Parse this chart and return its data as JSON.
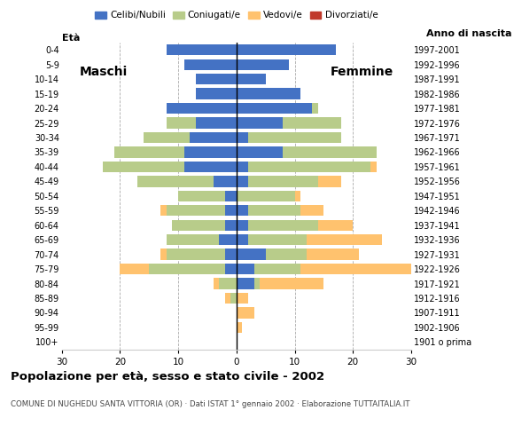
{
  "age_groups": [
    "100+",
    "95-99",
    "90-94",
    "85-89",
    "80-84",
    "75-79",
    "70-74",
    "65-69",
    "60-64",
    "55-59",
    "50-54",
    "45-49",
    "40-44",
    "35-39",
    "30-34",
    "25-29",
    "20-24",
    "15-19",
    "10-14",
    "5-9",
    "0-4"
  ],
  "birth_years": [
    "1901 o prima",
    "1902-1906",
    "1907-1911",
    "1912-1916",
    "1917-1921",
    "1922-1926",
    "1927-1931",
    "1932-1936",
    "1937-1941",
    "1942-1946",
    "1947-1951",
    "1952-1956",
    "1957-1961",
    "1962-1966",
    "1967-1971",
    "1972-1976",
    "1977-1981",
    "1982-1986",
    "1987-1991",
    "1992-1996",
    "1997-2001"
  ],
  "male": {
    "celibi": [
      0,
      0,
      0,
      0,
      0,
      2,
      2,
      3,
      2,
      2,
      2,
      4,
      9,
      9,
      8,
      7,
      12,
      7,
      7,
      9,
      12
    ],
    "coniugati": [
      0,
      0,
      0,
      1,
      3,
      13,
      10,
      9,
      9,
      10,
      8,
      13,
      14,
      12,
      8,
      5,
      0,
      0,
      0,
      0,
      0
    ],
    "vedovi": [
      0,
      0,
      0,
      1,
      1,
      5,
      1,
      0,
      0,
      1,
      0,
      0,
      0,
      0,
      0,
      0,
      0,
      0,
      0,
      0,
      0
    ],
    "divorziati": [
      0,
      0,
      0,
      0,
      0,
      0,
      0,
      0,
      0,
      0,
      0,
      0,
      0,
      0,
      0,
      0,
      0,
      0,
      0,
      0,
      0
    ]
  },
  "female": {
    "celibi": [
      0,
      0,
      0,
      0,
      3,
      3,
      5,
      2,
      2,
      2,
      0,
      2,
      2,
      8,
      2,
      8,
      13,
      11,
      5,
      9,
      17
    ],
    "coniugati": [
      0,
      0,
      0,
      0,
      1,
      8,
      7,
      10,
      12,
      9,
      10,
      12,
      21,
      16,
      16,
      10,
      1,
      0,
      0,
      0,
      0
    ],
    "vedovi": [
      0,
      1,
      3,
      2,
      11,
      19,
      9,
      13,
      6,
      4,
      1,
      4,
      1,
      0,
      0,
      0,
      0,
      0,
      0,
      0,
      0
    ],
    "divorziati": [
      0,
      0,
      0,
      0,
      0,
      0,
      0,
      0,
      0,
      0,
      0,
      0,
      0,
      0,
      0,
      0,
      0,
      0,
      0,
      0,
      0
    ]
  },
  "colors": {
    "celibi": "#4472c4",
    "coniugati": "#b8cc8a",
    "vedovi": "#ffc26e",
    "divorziati": "#c0392b"
  },
  "xlim": 30,
  "title": "Popolazione per età, sesso e stato civile - 2002",
  "subtitle": "COMUNE DI NUGHEDU SANTA VITTORIA (OR) · Dati ISTAT 1° gennaio 2002 · Elaborazione TUTTAITALIA.IT",
  "ylabel_left": "Età",
  "ylabel_right": "Anno di nascita",
  "label_maschi": "Maschi",
  "label_femmine": "Femmine",
  "legend_labels": [
    "Celibi/Nubili",
    "Coniugati/e",
    "Vedovi/e",
    "Divorziati/e"
  ],
  "bg_color": "#ffffff",
  "grid_color": "#aaaaaa"
}
